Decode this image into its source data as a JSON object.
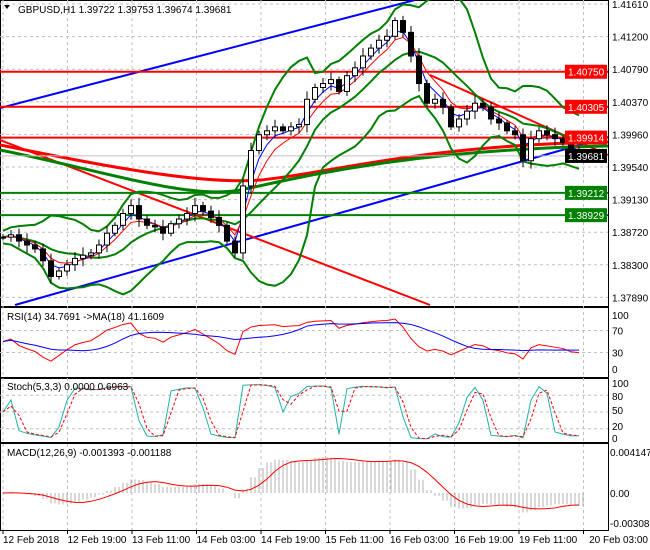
{
  "header": {
    "symbol": "GBPUSD,H1",
    "open": "1.39722",
    "high": "1.39753",
    "low": "1.39674",
    "close": "1.39681"
  },
  "price_axis": {
    "ticks": [
      "1.41610",
      "1.41200",
      "1.40790",
      "1.40370",
      "1.39960",
      "1.39540",
      "1.39130",
      "1.38720",
      "1.38300",
      "1.37890"
    ],
    "current": "1.39681"
  },
  "levels": [
    {
      "price": 1.4075,
      "label": "1.40750",
      "color": "#ff0000"
    },
    {
      "price": 1.40305,
      "label": "1.40305",
      "color": "#ff0000"
    },
    {
      "price": 1.39914,
      "label": "1.39914",
      "color": "#ff0000"
    },
    {
      "price": 1.39212,
      "label": "1.39212",
      "color": "#008000"
    },
    {
      "price": 1.38929,
      "label": "1.38929",
      "color": "#008000"
    }
  ],
  "time_axis": [
    "12 Feb 2018",
    "12 Feb 19:00",
    "13 Feb 11:00",
    "14 Feb 03:00",
    "14 Feb 19:00",
    "15 Feb 11:00",
    "16 Feb 03:00",
    "16 Feb 19:00",
    "19 Feb 11:00",
    "20 Feb 03:00"
  ],
  "rsi": {
    "label": "RSI(14) 34.7691  ->MA(18) 41.1609",
    "ticks": [
      "100",
      "70",
      "30",
      "0"
    ]
  },
  "stoch": {
    "label": "Stoch(5,3,3) 0.0000 0.6963",
    "ticks": [
      "100",
      "80",
      "50",
      "20",
      "0"
    ]
  },
  "macd": {
    "label": "MACD(12,26,9) -0.001393 -0.001188",
    "ticks": [
      "0.004147",
      "0.00",
      "-0.003082"
    ]
  },
  "colors": {
    "bull": "#000000",
    "bear": "#000000",
    "bands": "#008000",
    "channel": "#0000ff",
    "signal": "#ff0000",
    "stoch_main": "#20b2aa"
  },
  "chart_data": {
    "type": "candlestick",
    "title": "GBPUSD,H1",
    "ylim": [
      1.3789,
      1.4161
    ],
    "grid": true,
    "closes": [
      1.3865,
      1.3868,
      1.386,
      1.3855,
      1.385,
      1.3835,
      1.3815,
      1.3822,
      1.383,
      1.3838,
      1.3842,
      1.3845,
      1.3855,
      1.387,
      1.388,
      1.3895,
      1.3905,
      1.3888,
      1.388,
      1.3878,
      1.387,
      1.3882,
      1.3888,
      1.3895,
      1.3905,
      1.3898,
      1.389,
      1.388,
      1.386,
      1.3845,
      1.393,
      1.3975,
      1.3995,
      1.4,
      1.4005,
      1.4,
      1.4005,
      1.4008,
      1.404,
      1.4055,
      1.406,
      1.4065,
      1.405,
      1.407,
      1.408,
      1.4095,
      1.4105,
      1.4115,
      1.412,
      1.414,
      1.4125,
      1.4095,
      1.406,
      1.4035,
      1.404,
      1.403,
      1.4005,
      1.4015,
      1.4025,
      1.4035,
      1.403,
      1.4015,
      1.401,
      1.4,
      1.3995,
      1.3962,
      1.399,
      1.4,
      1.3995,
      1.399,
      1.3985,
      1.3972,
      1.3968
    ]
  }
}
